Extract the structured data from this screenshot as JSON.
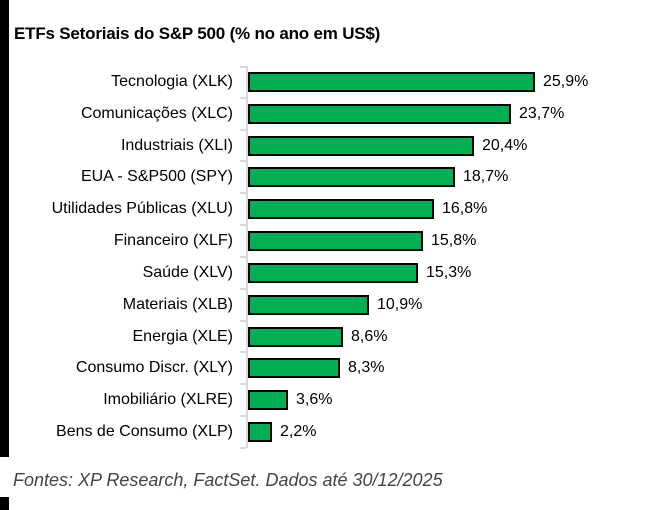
{
  "chart_data": {
    "type": "bar",
    "orientation": "horizontal",
    "title": "ETFs Setoriais do S&P 500 (% no ano em US$)",
    "categories": [
      "Tecnologia (XLK)",
      "Comunicações (XLC)",
      "Industriais (XLI)",
      "EUA - S&P500 (SPY)",
      "Utilidades Públicas (XLU)",
      "Financeiro (XLF)",
      "Saúde (XLV)",
      "Materiais (XLB)",
      "Energia (XLE)",
      "Consumo Discr. (XLY)",
      "Imobiliário (XLRE)",
      "Bens de Consumo (XLP)"
    ],
    "values": [
      25.9,
      23.7,
      20.4,
      18.7,
      16.8,
      15.8,
      15.3,
      10.9,
      8.6,
      8.3,
      3.6,
      2.2
    ],
    "value_labels": [
      "25,9%",
      "23,7%",
      "20,4%",
      "18,7%",
      "16,8%",
      "15,8%",
      "15,3%",
      "10,9%",
      "8,6%",
      "8,3%",
      "3,6%",
      "2,2%"
    ],
    "xlabel": "",
    "ylabel": "",
    "xlim": [
      0,
      27
    ],
    "grid": false,
    "legend_position": "none",
    "data_labels": true,
    "source": "Fontes: XP Research, FactSet. Dados até 30/12/2025"
  },
  "colors": {
    "bar_fill": "#00B050",
    "bar_border": "#000000",
    "axis_line": "#D9D9D9",
    "title_text": "#000000",
    "source_text": "#444444"
  }
}
